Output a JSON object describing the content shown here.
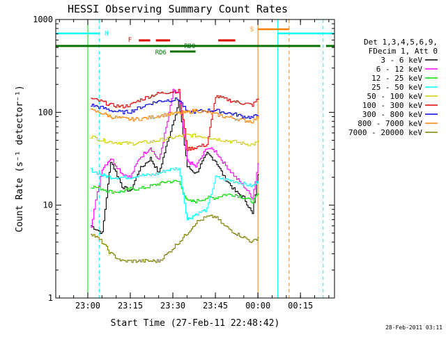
{
  "colors": {
    "background": "#ffffff",
    "foreground": "#000000",
    "cyan": "#00ffff",
    "orange": "#ff8000",
    "red": "#e00000",
    "dark_green": "#007000"
  },
  "chart_data": {
    "type": "line",
    "title": "HESSI Observing Summary Count Rates",
    "xlabel": "Start Time (27-Feb-11 22:48:42)",
    "ylabel": "Count Rate (s⁻¹ detector⁻¹)",
    "y_scale": "log",
    "ylim": [
      1,
      1000
    ],
    "xlim": [
      "22:48:42",
      "00:27:00"
    ],
    "x_ticks": [
      "23:00",
      "23:15",
      "23:30",
      "23:45",
      "00:00",
      "00:15"
    ],
    "y_ticks": [
      "1",
      "10",
      "100",
      "1000"
    ],
    "grid": false,
    "legend_position": "right",
    "legend_header": [
      "Det 1,3,4,5,6,9,",
      "FDecim 1, Att 0"
    ],
    "timestamp": "28-Feb-2011 03:11",
    "series": [
      {
        "name": "3 - 6 keV",
        "color": "#000000",
        "x": [
          "23:01",
          "23:05",
          "23:08",
          "23:12",
          "23:15",
          "23:18",
          "23:22",
          "23:25",
          "23:28",
          "23:32",
          "23:35",
          "23:38",
          "23:42",
          "23:45",
          "23:48",
          "23:52",
          "23:55",
          "23:58",
          "00:00"
        ],
        "values": [
          6,
          5,
          30,
          16,
          14,
          24,
          32,
          22,
          48,
          130,
          26,
          22,
          36,
          30,
          20,
          14,
          12,
          8,
          22
        ]
      },
      {
        "name": "6 - 12 keV",
        "color": "#ff00ff",
        "x": [
          "23:01",
          "23:05",
          "23:08",
          "23:12",
          "23:15",
          "23:18",
          "23:22",
          "23:25",
          "23:28",
          "23:30",
          "23:32",
          "23:35",
          "23:38",
          "23:42",
          "23:45",
          "23:48",
          "23:52",
          "23:55",
          "23:58",
          "00:00"
        ],
        "values": [
          6,
          25,
          32,
          22,
          20,
          32,
          42,
          30,
          80,
          170,
          160,
          30,
          26,
          42,
          38,
          28,
          20,
          16,
          12,
          28
        ]
      },
      {
        "name": "12 - 25 keV",
        "color": "#00e000",
        "x": [
          "23:01",
          "23:05",
          "23:08",
          "23:12",
          "23:15",
          "23:18",
          "23:22",
          "23:25",
          "23:28",
          "23:32",
          "23:35",
          "23:38",
          "23:42",
          "23:45",
          "23:48",
          "23:52",
          "23:55",
          "23:58",
          "00:00"
        ],
        "values": [
          16,
          15,
          14,
          14,
          15,
          15,
          16,
          17,
          18,
          18,
          11,
          11,
          12,
          12,
          13,
          13,
          12,
          11,
          13
        ]
      },
      {
        "name": "25 - 50 keV",
        "color": "#00ffff",
        "x": [
          "23:01",
          "23:05",
          "23:08",
          "23:12",
          "23:15",
          "23:18",
          "23:22",
          "23:25",
          "23:28",
          "23:32",
          "23:35",
          "23:38",
          "23:42",
          "23:45",
          "23:48",
          "23:52",
          "23:55",
          "23:58",
          "00:00"
        ],
        "values": [
          24,
          21,
          20,
          20,
          20,
          21,
          21,
          22,
          24,
          25,
          7,
          8,
          9,
          20,
          19,
          18,
          17,
          16,
          18
        ]
      },
      {
        "name": "50 - 100 keV",
        "color": "#d0d000",
        "x": [
          "23:01",
          "23:05",
          "23:08",
          "23:12",
          "23:15",
          "23:18",
          "23:22",
          "23:25",
          "23:28",
          "23:32",
          "23:35",
          "23:38",
          "23:42",
          "23:45",
          "23:48",
          "23:52",
          "23:55",
          "23:58",
          "00:00"
        ],
        "values": [
          55,
          50,
          48,
          47,
          46,
          47,
          48,
          50,
          52,
          55,
          57,
          56,
          54,
          52,
          50,
          48,
          46,
          45,
          48
        ]
      },
      {
        "name": "100 - 300 keV",
        "color": "#e00000",
        "x": [
          "23:01",
          "23:05",
          "23:08",
          "23:12",
          "23:15",
          "23:18",
          "23:22",
          "23:25",
          "23:28",
          "23:32",
          "23:35",
          "23:38",
          "23:42",
          "23:45",
          "23:48",
          "23:52",
          "23:55",
          "23:58",
          "00:00"
        ],
        "values": [
          140,
          130,
          120,
          115,
          120,
          135,
          150,
          160,
          165,
          170,
          40,
          42,
          45,
          150,
          140,
          130,
          125,
          120,
          140
        ]
      },
      {
        "name": "300 - 800 keV",
        "color": "#0000e0",
        "x": [
          "23:01",
          "23:05",
          "23:08",
          "23:12",
          "23:15",
          "23:18",
          "23:22",
          "23:25",
          "23:28",
          "23:32",
          "23:35",
          "23:38",
          "23:42",
          "23:45",
          "23:48",
          "23:52",
          "23:55",
          "23:58",
          "00:00"
        ],
        "values": [
          120,
          112,
          105,
          100,
          102,
          112,
          125,
          132,
          135,
          138,
          100,
          102,
          105,
          105,
          100,
          95,
          90,
          88,
          95
        ]
      },
      {
        "name": "800 - 7000 keV",
        "color": "#ff8000",
        "x": [
          "23:01",
          "23:05",
          "23:08",
          "23:12",
          "23:15",
          "23:18",
          "23:22",
          "23:25",
          "23:28",
          "23:32",
          "23:35",
          "23:38",
          "23:42",
          "23:45",
          "23:48",
          "23:52",
          "23:55",
          "23:58",
          "00:00"
        ],
        "values": [
          105,
          98,
          90,
          86,
          84,
          85,
          88,
          92,
          95,
          98,
          100,
          105,
          100,
          95,
          90,
          86,
          82,
          80,
          90
        ]
      },
      {
        "name": "7000 - 20000 keV",
        "color": "#808000",
        "x": [
          "23:01",
          "23:03",
          "23:05",
          "23:08",
          "23:12",
          "23:15",
          "23:18",
          "23:22",
          "23:25",
          "23:28",
          "23:32",
          "23:35",
          "23:38",
          "23:42",
          "23:45",
          "23:48",
          "23:52",
          "23:55",
          "23:58",
          "00:00"
        ],
        "values": [
          5,
          4.5,
          4,
          3,
          2.5,
          2.5,
          2.5,
          2.5,
          2.5,
          3,
          4,
          5,
          6.5,
          7.5,
          7.5,
          6,
          5,
          4.5,
          4,
          4.5
        ]
      }
    ],
    "flags": [
      {
        "label": "N",
        "color": "#00ffff",
        "segments": [
          [
            "22:48:42",
            "23:04"
          ],
          [
            "00:07",
            "00:27"
          ]
        ]
      },
      {
        "label": "S",
        "color": "#ff8000",
        "segments": [
          [
            "00:00",
            "00:11"
          ]
        ]
      },
      {
        "label": "F",
        "color": "#e00000",
        "segments": [
          [
            "23:18",
            "23:22"
          ],
          [
            "23:24",
            "23:29"
          ],
          [
            "23:46",
            "23:52"
          ]
        ]
      },
      {
        "label": "RD0",
        "color": "#007000",
        "segments": [
          [
            "22:48:42",
            "00:22"
          ],
          [
            "00:24",
            "00:27"
          ]
        ]
      },
      {
        "label": "RD6",
        "color": "#007000",
        "segments": [
          [
            "23:29",
            "23:38"
          ]
        ]
      }
    ],
    "vertical_markers": [
      {
        "time": "22:48:42",
        "color": "#00ffff",
        "style": "solid"
      },
      {
        "time": "23:04",
        "color": "#00ffff",
        "style": "dashed"
      },
      {
        "time": "23:00",
        "color": "#00e000",
        "style": "solid"
      },
      {
        "time": "00:00",
        "color": "#ff8000",
        "style": "solid"
      },
      {
        "time": "00:07",
        "color": "#00ffff",
        "style": "solid"
      },
      {
        "time": "00:11",
        "color": "#ff8000",
        "style": "dashed"
      },
      {
        "time": "00:23",
        "color": "#00ffff",
        "style": "dashed"
      }
    ]
  }
}
